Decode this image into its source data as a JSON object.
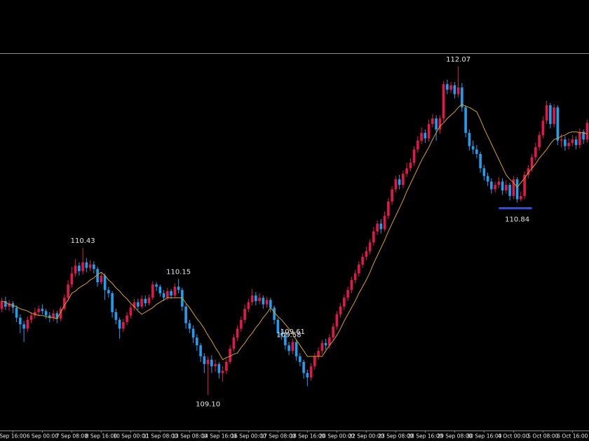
{
  "chart_data": {
    "type": "candlestick",
    "up_color": "#e3174d",
    "down_color": "#1e9ff0",
    "ylim": [
      108.78,
      112.19
    ],
    "categories": [
      null,
      null,
      null,
      "Sep 16:00",
      null,
      null,
      null,
      null,
      null,
      null,
      null,
      "6 Sep 00:00",
      null,
      null,
      null,
      null,
      null,
      null,
      null,
      "7 Sep 08:00",
      null,
      null,
      null,
      null,
      null,
      null,
      null,
      "8 Sep 16:00",
      null,
      null,
      null,
      null,
      null,
      null,
      null,
      "10 Sep 00:00",
      null,
      null,
      null,
      null,
      null,
      null,
      null,
      "11 Sep 08:00",
      null,
      null,
      null,
      null,
      null,
      null,
      null,
      "13 Sep 08:00",
      null,
      null,
      null,
      null,
      null,
      null,
      null,
      "14 Sep 16:00",
      null,
      null,
      null,
      null,
      null,
      null,
      null,
      "16 Sep 00:00",
      null,
      null,
      null,
      null,
      null,
      null,
      null,
      "17 Sep 08:00",
      null,
      null,
      null,
      null,
      null,
      null,
      null,
      "18 Sep 16:00",
      null,
      null,
      null,
      null,
      null,
      null,
      null,
      "20 Sep 00:00",
      null,
      null,
      null,
      null,
      null,
      null,
      null,
      "22 Sep 00:00",
      null,
      null,
      null,
      null,
      null,
      null,
      null,
      "23 Sep 08:00",
      null,
      null,
      null,
      null,
      null,
      null,
      null,
      "28 Sep 16:00",
      null,
      null,
      null,
      null,
      null,
      null,
      null,
      "29 Sep 08:00",
      null,
      null,
      null,
      null,
      null,
      null,
      null,
      "30 Sep 16:00",
      null,
      null,
      null,
      null,
      null,
      null,
      null,
      "4 Oct 00:00",
      null,
      null,
      null,
      null,
      null,
      null,
      null,
      "5 Oct 08:00",
      null,
      null,
      null,
      null,
      null,
      null,
      null,
      "6 Oct 16:00",
      null,
      null,
      null,
      null
    ],
    "open": [
      109.88,
      109.95,
      109.9,
      109.93,
      109.89,
      109.8,
      109.74,
      109.7,
      109.78,
      109.82,
      109.85,
      109.88,
      109.86,
      109.82,
      109.8,
      109.84,
      109.79,
      109.88,
      109.98,
      110.1,
      110.2,
      110.27,
      110.22,
      110.3,
      110.25,
      110.28,
      110.24,
      110.12,
      110.18,
      110.05,
      110.02,
      109.85,
      109.78,
      109.7,
      109.76,
      109.82,
      109.89,
      109.94,
      109.9,
      109.97,
      109.93,
      109.98,
      110.1,
      110.08,
      110.02,
      109.98,
      110.04,
      110.0,
      110.08,
      110.05,
      109.9,
      109.75,
      109.7,
      109.62,
      109.55,
      109.45,
      109.38,
      109.42,
      109.36,
      109.38,
      109.3,
      109.32,
      109.4,
      109.52,
      109.62,
      109.7,
      109.78,
      109.88,
      109.94,
      110.0,
      109.95,
      109.98,
      109.92,
      109.96,
      109.89,
      109.78,
      109.66,
      109.64,
      109.55,
      109.5,
      109.58,
      109.45,
      109.4,
      109.3,
      109.26,
      109.36,
      109.45,
      109.5,
      109.57,
      109.55,
      109.62,
      109.72,
      109.83,
      109.9,
      109.98,
      110.05,
      110.14,
      110.2,
      110.28,
      110.35,
      110.4,
      110.48,
      110.58,
      110.65,
      110.6,
      110.72,
      110.85,
      110.96,
      111.05,
      111.0,
      111.1,
      111.15,
      111.2,
      111.32,
      111.4,
      111.47,
      111.42,
      111.55,
      111.6,
      111.5,
      111.6,
      111.91,
      111.86,
      111.9,
      111.82,
      111.88,
      111.7,
      111.47,
      111.35,
      111.32,
      111.28,
      111.15,
      111.08,
      111.03,
      110.96,
      111.0,
      111.03,
      110.95,
      111.0,
      110.9,
      111.05,
      110.87,
      110.9,
      111.09,
      111.15,
      111.25,
      111.34,
      111.45,
      111.58,
      111.72,
      111.55,
      111.7,
      111.4,
      111.41,
      111.35,
      111.38,
      111.41,
      111.36,
      111.48,
      111.41
    ],
    "high": [
      109.98,
      109.99,
      109.96,
      109.95,
      109.91,
      109.83,
      109.77,
      109.81,
      109.85,
      109.89,
      109.91,
      109.92,
      109.88,
      109.85,
      109.87,
      109.86,
      109.9,
      110.01,
      110.14,
      110.26,
      110.33,
      110.3,
      110.43,
      110.34,
      110.32,
      110.31,
      110.26,
      110.21,
      110.2,
      110.08,
      110.04,
      109.88,
      109.8,
      109.79,
      109.85,
      109.92,
      109.97,
      109.97,
      110.0,
      110.0,
      110.01,
      110.13,
      110.12,
      110.1,
      110.05,
      110.07,
      110.06,
      110.11,
      110.15,
      110.07,
      109.92,
      109.78,
      109.73,
      109.65,
      109.57,
      109.48,
      109.45,
      109.46,
      109.42,
      109.4,
      109.36,
      109.43,
      109.55,
      109.65,
      109.73,
      109.81,
      109.92,
      109.97,
      110.06,
      110.03,
      110.02,
      110.0,
      109.99,
      109.98,
      109.91,
      109.8,
      109.7,
      109.67,
      109.58,
      109.61,
      109.6,
      109.48,
      109.42,
      109.33,
      109.39,
      109.48,
      109.53,
      109.6,
      109.61,
      109.65,
      109.75,
      109.86,
      109.93,
      110.01,
      110.08,
      110.17,
      110.23,
      110.31,
      110.38,
      110.44,
      110.51,
      110.62,
      110.68,
      110.69,
      110.76,
      110.88,
      110.99,
      111.08,
      111.09,
      111.13,
      111.2,
      111.24,
      111.35,
      111.44,
      111.52,
      111.5,
      111.59,
      111.64,
      111.63,
      111.63,
      111.94,
      111.95,
      111.93,
      111.93,
      112.07,
      111.92,
      111.72,
      111.5,
      111.4,
      111.36,
      111.3,
      111.18,
      111.11,
      111.06,
      111.03,
      111.07,
      111.06,
      111.04,
      111.02,
      111.08,
      111.07,
      110.94,
      111.12,
      111.18,
      111.28,
      111.38,
      111.48,
      111.62,
      111.76,
      111.74,
      111.73,
      111.72,
      111.46,
      111.44,
      111.42,
      111.45,
      111.44,
      111.51,
      111.5,
      111.59
    ],
    "low": [
      109.85,
      109.87,
      109.86,
      109.84,
      109.76,
      109.66,
      109.58,
      109.67,
      109.75,
      109.79,
      109.82,
      109.83,
      109.79,
      109.76,
      109.77,
      109.75,
      109.77,
      109.86,
      109.95,
      110.07,
      110.17,
      110.18,
      110.19,
      110.21,
      110.22,
      110.2,
      110.08,
      110.1,
      109.96,
      109.98,
      109.8,
      109.74,
      109.61,
      109.67,
      109.73,
      109.79,
      109.86,
      109.87,
      109.88,
      109.9,
      109.91,
      109.96,
      110.04,
      109.99,
      109.95,
      109.96,
      109.97,
      109.98,
      110.02,
      109.86,
      109.7,
      109.66,
      109.57,
      109.5,
      109.4,
      109.3,
      109.1,
      109.3,
      109.31,
      109.25,
      109.22,
      109.29,
      109.38,
      109.49,
      109.59,
      109.67,
      109.75,
      109.85,
      109.91,
      109.91,
      109.92,
      109.88,
      109.89,
      109.85,
      109.74,
      109.62,
      109.6,
      109.51,
      109.46,
      109.47,
      109.41,
      109.36,
      109.25,
      109.18,
      109.23,
      109.33,
      109.42,
      109.47,
      109.51,
      109.52,
      109.59,
      109.69,
      109.8,
      109.87,
      109.95,
      110.02,
      110.11,
      110.17,
      110.25,
      110.32,
      110.37,
      110.45,
      110.55,
      110.56,
      110.58,
      110.69,
      110.82,
      110.93,
      110.96,
      110.97,
      111.07,
      111.12,
      111.17,
      111.29,
      111.37,
      111.38,
      111.39,
      111.52,
      111.4,
      111.46,
      111.57,
      111.82,
      111.83,
      111.78,
      111.79,
      111.66,
      111.43,
      111.31,
      111.28,
      111.24,
      111.11,
      111.04,
      110.99,
      110.92,
      110.93,
      110.97,
      110.91,
      110.92,
      110.86,
      110.87,
      110.84,
      110.85,
      110.87,
      111.06,
      111.12,
      111.22,
      111.31,
      111.42,
      111.55,
      111.51,
      111.52,
      111.36,
      111.34,
      111.31,
      111.32,
      111.35,
      111.32,
      111.33,
      111.37,
      111.38
    ],
    "close": [
      109.95,
      109.9,
      109.93,
      109.89,
      109.8,
      109.74,
      109.7,
      109.78,
      109.82,
      109.85,
      109.88,
      109.86,
      109.82,
      109.8,
      109.84,
      109.79,
      109.88,
      109.98,
      110.1,
      110.2,
      110.27,
      110.22,
      110.3,
      110.25,
      110.28,
      110.24,
      110.12,
      110.18,
      110.05,
      110.02,
      109.85,
      109.78,
      109.7,
      109.76,
      109.82,
      109.89,
      109.94,
      109.9,
      109.97,
      109.93,
      109.98,
      110.1,
      110.08,
      110.02,
      109.98,
      110.04,
      110.0,
      110.08,
      110.05,
      109.9,
      109.75,
      109.7,
      109.62,
      109.55,
      109.45,
      109.38,
      109.42,
      109.36,
      109.38,
      109.3,
      109.32,
      109.4,
      109.52,
      109.62,
      109.7,
      109.78,
      109.88,
      109.94,
      110.0,
      109.95,
      109.98,
      109.92,
      109.96,
      109.89,
      109.78,
      109.66,
      109.64,
      109.55,
      109.5,
      109.58,
      109.45,
      109.4,
      109.3,
      109.26,
      109.36,
      109.45,
      109.5,
      109.57,
      109.55,
      109.62,
      109.72,
      109.83,
      109.9,
      109.98,
      110.05,
      110.14,
      110.2,
      110.28,
      110.35,
      110.4,
      110.48,
      110.58,
      110.65,
      110.6,
      110.72,
      110.85,
      110.96,
      111.05,
      111.0,
      111.1,
      111.15,
      111.2,
      111.32,
      111.4,
      111.47,
      111.42,
      111.55,
      111.6,
      111.5,
      111.6,
      111.91,
      111.86,
      111.9,
      111.82,
      111.88,
      111.7,
      111.47,
      111.35,
      111.32,
      111.28,
      111.15,
      111.08,
      111.03,
      110.96,
      111.0,
      111.03,
      110.95,
      111.0,
      110.9,
      111.05,
      110.87,
      110.9,
      111.09,
      111.15,
      111.25,
      111.34,
      111.45,
      111.58,
      111.72,
      111.55,
      111.7,
      111.4,
      111.41,
      111.35,
      111.38,
      111.41,
      111.36,
      111.48,
      111.41,
      111.56
    ],
    "overlay": {
      "color": "#d9a21b",
      "values": [
        109.95,
        109.94,
        109.92,
        109.91,
        109.9,
        109.88,
        109.87,
        109.86,
        109.84,
        109.83,
        109.82,
        109.82,
        109.81,
        109.8,
        109.8,
        109.79,
        109.85,
        109.91,
        109.96,
        110.02,
        110.04,
        110.07,
        110.09,
        110.11,
        110.14,
        110.16,
        110.19,
        110.21,
        110.18,
        110.14,
        110.11,
        110.07,
        110.04,
        110.0,
        109.97,
        109.93,
        109.9,
        109.86,
        109.83,
        109.85,
        109.87,
        109.89,
        109.92,
        109.94,
        109.96,
        109.98,
        109.98,
        109.98,
        109.98,
        109.98,
        109.93,
        109.89,
        109.84,
        109.79,
        109.75,
        109.7,
        109.64,
        109.59,
        109.53,
        109.48,
        109.42,
        109.44,
        109.45,
        109.47,
        109.48,
        109.53,
        109.57,
        109.62,
        109.66,
        109.71,
        109.75,
        109.8,
        109.84,
        109.89,
        109.85,
        109.81,
        109.78,
        109.74,
        109.7,
        109.65,
        109.6,
        109.55,
        109.5,
        109.45,
        109.45,
        109.45,
        109.45,
        109.45,
        109.5,
        109.55,
        109.59,
        109.64,
        109.7,
        109.77,
        109.83,
        109.89,
        109.95,
        110.02,
        110.08,
        110.14,
        110.21,
        110.29,
        110.36,
        110.43,
        110.5,
        110.58,
        110.65,
        110.72,
        110.79,
        110.86,
        110.94,
        111.01,
        111.08,
        111.15,
        111.22,
        111.28,
        111.34,
        111.41,
        111.47,
        111.53,
        111.56,
        111.6,
        111.63,
        111.66,
        111.7,
        111.73,
        111.71,
        111.7,
        111.68,
        111.66,
        111.59,
        111.51,
        111.44,
        111.37,
        111.3,
        111.23,
        111.16,
        111.09,
        111.05,
        111.02,
        110.98,
        111.02,
        111.06,
        111.11,
        111.15,
        111.19,
        111.24,
        111.28,
        111.32,
        111.37,
        111.41,
        111.42,
        111.44,
        111.45,
        111.47,
        111.48,
        111.48,
        111.47,
        111.47,
        111.46
      ]
    },
    "annotations": [
      {
        "value": 110.43
      },
      {
        "value": 110.15
      },
      {
        "value": 109.58
      },
      {
        "value": 109.61
      },
      {
        "value": 109.1,
        "label": "109.10"
      },
      {
        "value": 112.07
      },
      {
        "value": 110.84,
        "line_color": "#3b4cd6"
      }
    ]
  }
}
